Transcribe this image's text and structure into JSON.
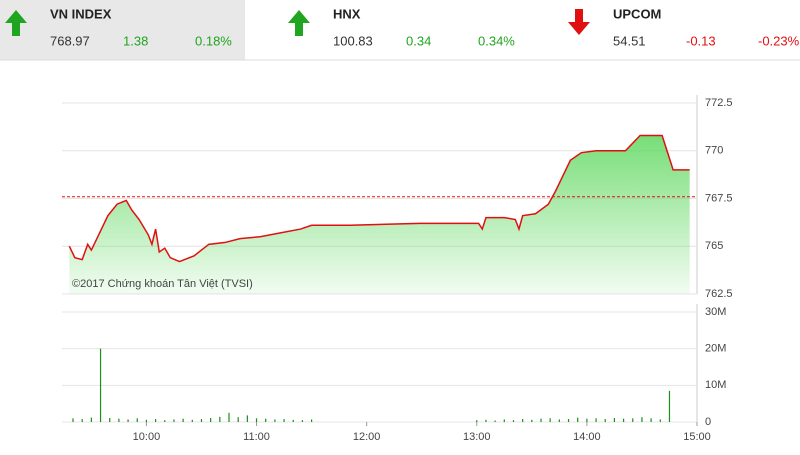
{
  "header": {
    "indices": [
      {
        "name": "VN INDEX",
        "value": "768.97",
        "change": "1.38",
        "change_pct": "0.18%",
        "direction": "up"
      },
      {
        "name": "HNX",
        "value": "100.83",
        "change": "0.34",
        "change_pct": "0.34%",
        "direction": "up"
      },
      {
        "name": "UPCOM",
        "value": "54.51",
        "change": "-0.13",
        "change_pct": "-0.23%",
        "direction": "down"
      }
    ]
  },
  "chart_data": [
    {
      "type": "area",
      "annotation": "©2017 Chứng khoán Tân Việt (TVSI)",
      "x": [
        558,
        561,
        565,
        568,
        570,
        574,
        579,
        584,
        589,
        592,
        596,
        601,
        603,
        605,
        607,
        610,
        613,
        618,
        626,
        634,
        643,
        651,
        662,
        673,
        684,
        690,
        711,
        749,
        781,
        783,
        785,
        795,
        801,
        803,
        805,
        812,
        819,
        823,
        827,
        831,
        837,
        845,
        853,
        861,
        869,
        881,
        887,
        896
      ],
      "values": [
        765.0,
        764.4,
        764.3,
        765.1,
        764.8,
        765.6,
        766.6,
        767.2,
        767.4,
        766.9,
        766.4,
        765.6,
        765.1,
        765.9,
        764.7,
        764.9,
        764.4,
        764.2,
        764.5,
        765.1,
        765.2,
        765.4,
        765.5,
        765.7,
        765.9,
        766.1,
        766.1,
        766.2,
        766.2,
        765.9,
        766.5,
        766.5,
        766.4,
        765.9,
        766.6,
        766.7,
        767.2,
        767.9,
        768.7,
        769.5,
        769.9,
        770.0,
        770.0,
        770.0,
        770.8,
        770.8,
        769.0,
        769.0
      ],
      "color": "#e01010",
      "fill_color": "#5fd85f",
      "reference": 767.59,
      "reference_color": "#e01010",
      "xlim": [
        554,
        900
      ],
      "ylim": [
        762.5,
        772.5
      ],
      "yticks": [
        772.5,
        770,
        767.5,
        765,
        762.5
      ],
      "grid": true
    },
    {
      "type": "bar",
      "x": [
        560,
        565,
        570,
        575,
        580,
        585,
        590,
        595,
        600,
        605,
        610,
        615,
        620,
        625,
        630,
        635,
        640,
        645,
        650,
        655,
        660,
        665,
        670,
        675,
        680,
        685,
        690,
        780,
        785,
        790,
        795,
        800,
        805,
        810,
        815,
        820,
        825,
        830,
        835,
        840,
        845,
        850,
        855,
        860,
        865,
        870,
        875,
        880,
        885
      ],
      "values": [
        1,
        0.8,
        1.2,
        20,
        1.1,
        0.9,
        0.7,
        1,
        0.6,
        0.8,
        0.5,
        0.7,
        0.9,
        0.6,
        0.8,
        1.1,
        1.4,
        2.5,
        1.3,
        1.8,
        1.0,
        0.9,
        0.7,
        0.8,
        0.6,
        0.5,
        0.7,
        0.5,
        0.6,
        0.4,
        0.7,
        0.5,
        0.8,
        0.6,
        0.9,
        1.0,
        0.7,
        0.8,
        1.2,
        0.9,
        1.0,
        0.8,
        1.1,
        0.9,
        1.0,
        1.3,
        1.0,
        0.7,
        8.5
      ],
      "color": "#1a8f1a",
      "xlim": [
        554,
        900
      ],
      "xticks": [
        {
          "value": 600,
          "label": "10:00"
        },
        {
          "value": 660,
          "label": "11:00"
        },
        {
          "value": 720,
          "label": "12:00"
        },
        {
          "value": 780,
          "label": "13:00"
        },
        {
          "value": 840,
          "label": "14:00"
        },
        {
          "value": 900,
          "label": "15:00"
        }
      ],
      "ylim": [
        0,
        30
      ],
      "yticks": [
        {
          "value": 30,
          "label": "30M"
        },
        {
          "value": 20,
          "label": "20M"
        },
        {
          "value": 10,
          "label": "10M"
        },
        0
      ],
      "grid": true
    }
  ]
}
